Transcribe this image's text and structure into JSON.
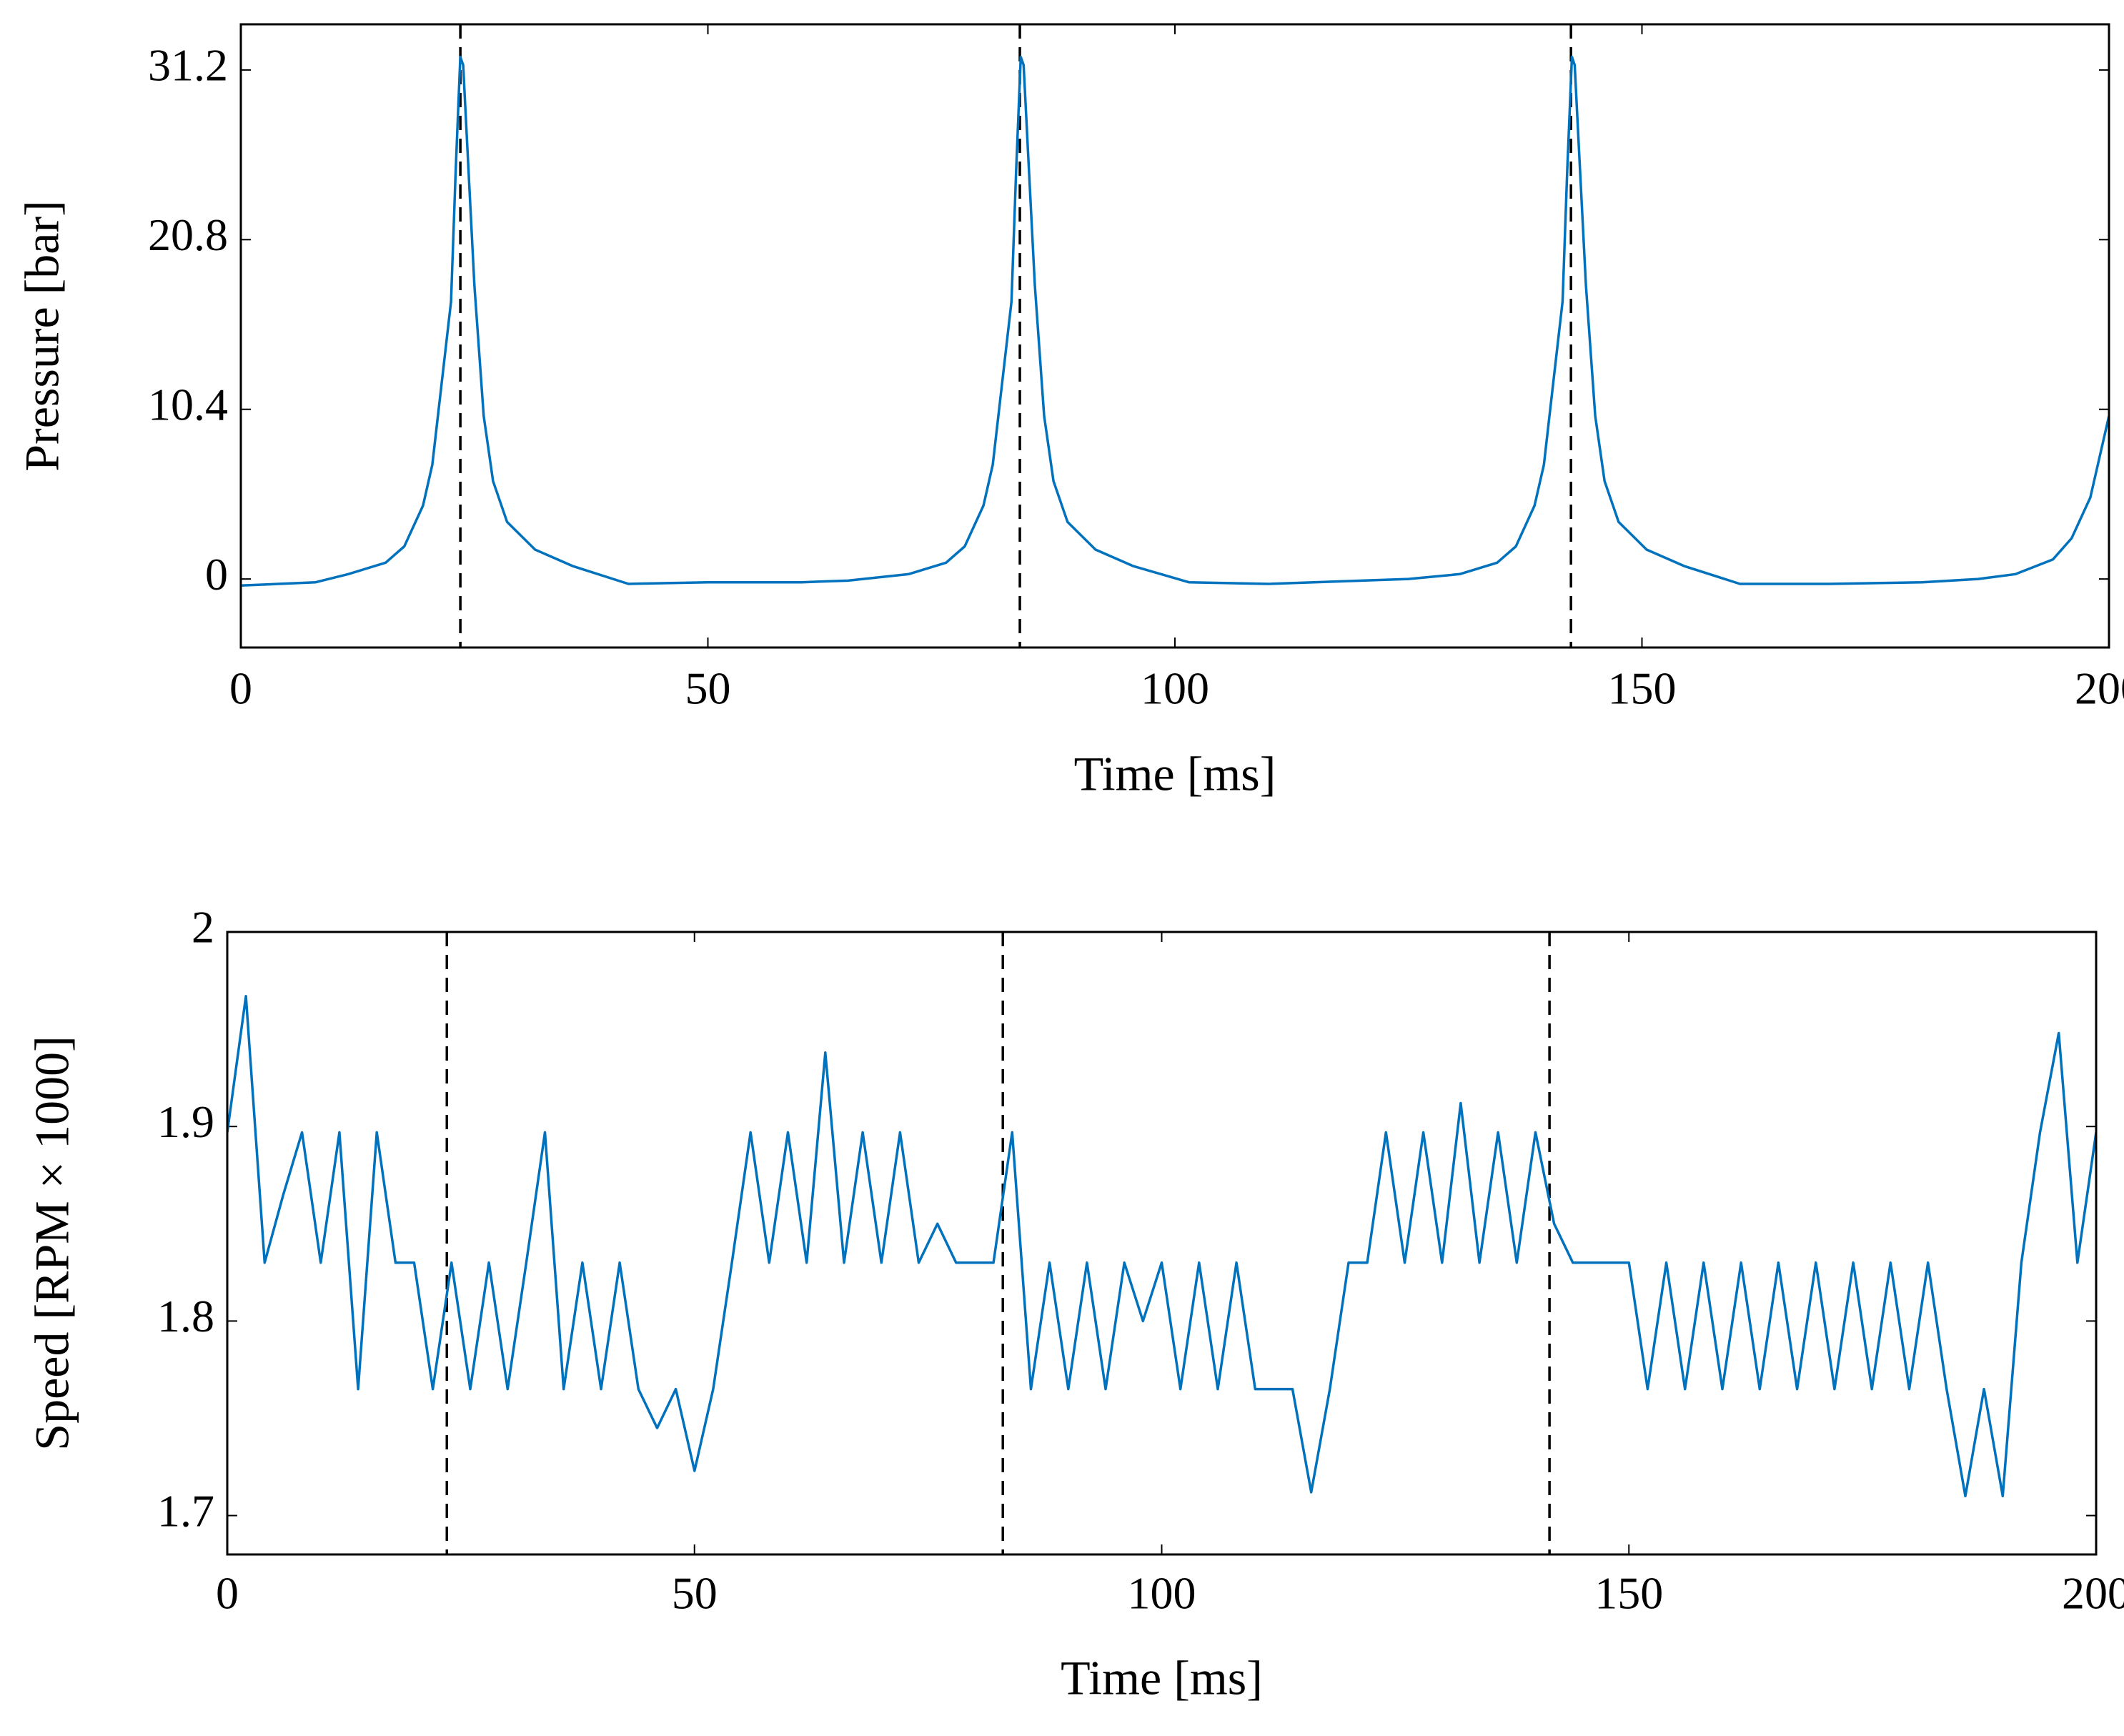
{
  "chart_data": [
    {
      "type": "line",
      "xlabel": "Time [ms]",
      "ylabel": "Pressure [bar]",
      "color": "#0072bd",
      "xlim": [
        0,
        200
      ],
      "xticks": [
        0,
        50,
        100,
        150,
        200
      ],
      "ylim": [
        -4.2,
        34
      ],
      "yticks": [
        0,
        10.4,
        20.8,
        31.2
      ],
      "vlines": [
        23.5,
        83.4,
        142.4
      ],
      "x": [
        0,
        4,
        8,
        11.5,
        15.5,
        17.5,
        19.5,
        20.5,
        21.5,
        22.5,
        23,
        23.5,
        23.8,
        24.2,
        25,
        26,
        27,
        28.5,
        31.5,
        35.5,
        41.5,
        50,
        60,
        65,
        71.5,
        75.5,
        77.5,
        79.5,
        80.5,
        81.5,
        82.5,
        83,
        83.5,
        83.8,
        84.2,
        85,
        86,
        87,
        88.5,
        91.5,
        95.5,
        101.5,
        110,
        120,
        125,
        130.5,
        134.5,
        136.5,
        138.5,
        139.5,
        140.5,
        141.5,
        142,
        142.5,
        142.8,
        143.2,
        144,
        145,
        146,
        147.5,
        150.5,
        154.5,
        160.5,
        170,
        180,
        186,
        190,
        194,
        196,
        198,
        200
      ],
      "values": [
        -0.4,
        -0.3,
        -0.2,
        0.3,
        1.0,
        2,
        4.5,
        7,
        12,
        17,
        25,
        32,
        31.5,
        27,
        18,
        10,
        6,
        3.5,
        1.8,
        0.8,
        -0.3,
        -0.2,
        -0.2,
        -0.1,
        0.3,
        1.0,
        2,
        4.5,
        7,
        12,
        17,
        25,
        32,
        31.5,
        27,
        18,
        10,
        6,
        3.5,
        1.8,
        0.8,
        -0.2,
        -0.3,
        -0.1,
        0.0,
        0.3,
        1.0,
        2,
        4.5,
        7,
        12,
        17,
        25,
        32,
        31.5,
        27,
        18,
        10,
        6,
        3.5,
        1.8,
        0.8,
        -0.3,
        -0.3,
        -0.2,
        0.0,
        0.3,
        1.2,
        2.5,
        5,
        10
      ]
    },
    {
      "type": "line",
      "xlabel": "Time [ms]",
      "ylabel": "Speed [RPM × 1000]",
      "color": "#0072bd",
      "xlim": [
        0,
        200
      ],
      "xticks": [
        0,
        50,
        100,
        150,
        200
      ],
      "ylim": [
        1.68,
        2.0
      ],
      "yticks": [
        1.7,
        1.8,
        1.9,
        2
      ],
      "vlines": [
        23.5,
        83,
        141.5
      ],
      "x": [
        0,
        2,
        4,
        6,
        8,
        10,
        12,
        14,
        16,
        18,
        20,
        22,
        24,
        26,
        28,
        30,
        32,
        34,
        36,
        38,
        40,
        42,
        44,
        46,
        48,
        50,
        52,
        54,
        56,
        58,
        60,
        62,
        64,
        66,
        68,
        70,
        72,
        74,
        76,
        78,
        80,
        82,
        84,
        86,
        88,
        90,
        92,
        94,
        96,
        98,
        100,
        102,
        104,
        106,
        108,
        110,
        112,
        114,
        116,
        118,
        120,
        122,
        124,
        126,
        128,
        130,
        132,
        134,
        136,
        138,
        140,
        142,
        144,
        146,
        148,
        150,
        152,
        154,
        156,
        158,
        160,
        162,
        164,
        166,
        168,
        170,
        172,
        174,
        176,
        178,
        180,
        182,
        184,
        186,
        188,
        190,
        192,
        194,
        196,
        198,
        200
      ],
      "values": [
        1.897,
        1.967,
        1.83,
        1.865,
        1.897,
        1.83,
        1.897,
        1.765,
        1.897,
        1.83,
        1.83,
        1.765,
        1.83,
        1.765,
        1.83,
        1.765,
        1.83,
        1.897,
        1.765,
        1.83,
        1.765,
        1.83,
        1.765,
        1.745,
        1.765,
        1.723,
        1.765,
        1.83,
        1.897,
        1.83,
        1.897,
        1.83,
        1.938,
        1.83,
        1.897,
        1.83,
        1.897,
        1.83,
        1.85,
        1.83,
        1.83,
        1.83,
        1.897,
        1.765,
        1.83,
        1.765,
        1.83,
        1.765,
        1.83,
        1.8,
        1.83,
        1.765,
        1.83,
        1.765,
        1.83,
        1.765,
        1.765,
        1.765,
        1.712,
        1.765,
        1.83,
        1.83,
        1.897,
        1.83,
        1.897,
        1.83,
        1.912,
        1.83,
        1.897,
        1.83,
        1.897,
        1.85,
        1.83,
        1.83,
        1.83,
        1.83,
        1.765,
        1.83,
        1.765,
        1.83,
        1.765,
        1.83,
        1.765,
        1.83,
        1.765,
        1.83,
        1.765,
        1.83,
        1.765,
        1.83,
        1.765,
        1.83,
        1.765,
        1.71,
        1.765,
        1.71,
        1.83,
        1.897,
        1.948,
        1.83,
        1.897
      ]
    }
  ]
}
